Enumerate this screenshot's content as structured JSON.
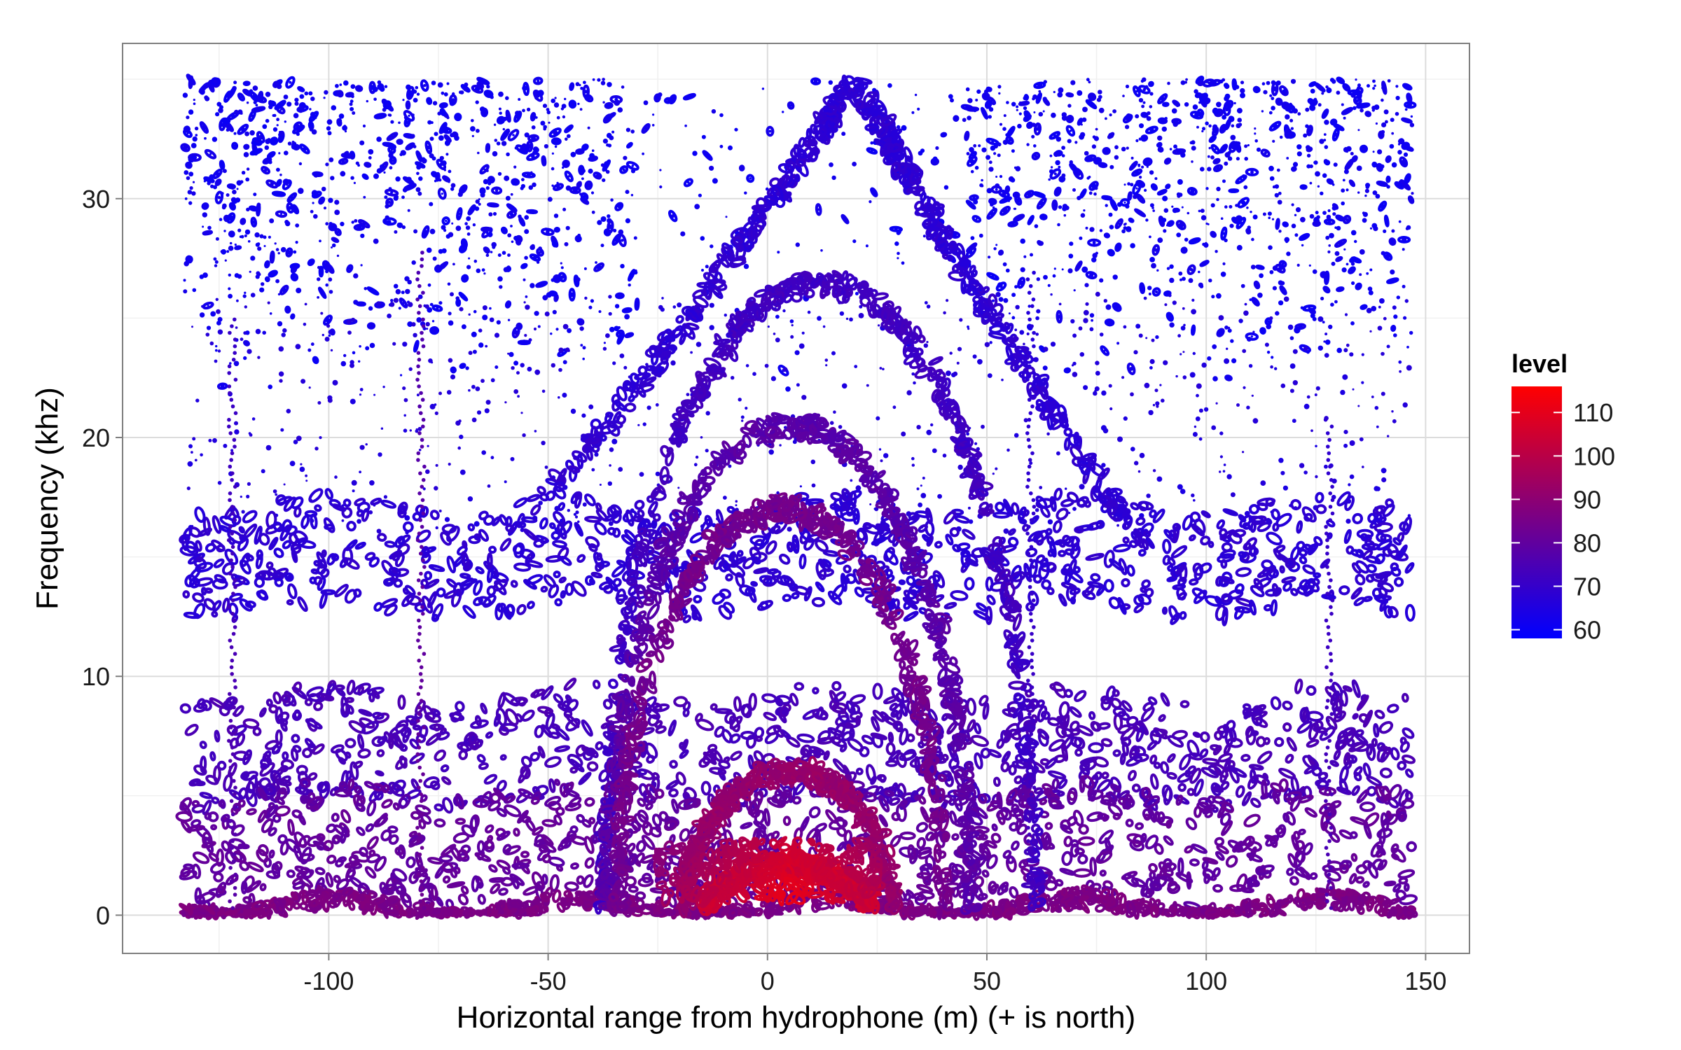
{
  "chart_data": {
    "type": "scatter",
    "description_kind": "contour",
    "xlabel": "Horizontal range from hydrophone (m)  (+ is north)",
    "ylabel": "Frequency (khz)",
    "xlim": [
      -147,
      160
    ],
    "ylim": [
      -1.6,
      36.5
    ],
    "x_ticks": [
      -100,
      -50,
      0,
      50,
      100,
      150
    ],
    "x_tick_labels": [
      "-100",
      "-50",
      "0",
      "50",
      "100",
      "150"
    ],
    "y_ticks": [
      0,
      10,
      20,
      30
    ],
    "y_tick_labels": [
      "0",
      "10",
      "20",
      "30"
    ],
    "data_x_range": [
      -133,
      147
    ],
    "data_y_range": [
      0,
      35
    ],
    "grid": true,
    "legend": {
      "title": "level",
      "position": "right",
      "min": 58,
      "max": 116,
      "low_color": "#0000ff",
      "high_color": "#ff0000",
      "breaks": [
        60,
        70,
        80,
        90,
        100,
        110
      ],
      "break_labels": [
        "60",
        "70",
        "80",
        "90",
        "100",
        "110"
      ]
    },
    "features": [
      {
        "kind": "upper_noise",
        "level": 60
      },
      {
        "kind": "contour_ring",
        "level": 68,
        "apex_x": 20,
        "apex_y": 35,
        "wing_y": 15
      },
      {
        "kind": "contour_ring",
        "level": 72,
        "center_x": 12,
        "top_y": 26.5
      },
      {
        "kind": "contour_ring",
        "level": 78,
        "center_x": 5,
        "top_y": 20.5
      },
      {
        "kind": "contour_ring",
        "level": 84,
        "center_x": 3,
        "top_y": 17
      },
      {
        "kind": "contour_ring",
        "level": 92,
        "center_x": 5,
        "top_y": 6
      },
      {
        "kind": "contour_ring",
        "level": 105,
        "center_x": 5,
        "top_y": 2
      },
      {
        "kind": "source_peak",
        "level": 112,
        "x": 0,
        "y": 0.6
      },
      {
        "kind": "band",
        "level": 68,
        "y": 15
      },
      {
        "kind": "band",
        "level": 74,
        "y": 7
      },
      {
        "kind": "band",
        "level": 80,
        "y": 3
      },
      {
        "kind": "band",
        "level": 86,
        "y": 0.3
      },
      {
        "kind": "vertical_streak",
        "x": -122,
        "level": 70
      },
      {
        "kind": "vertical_streak",
        "x": -79,
        "level": 75
      },
      {
        "kind": "vertical_streak",
        "x": 60,
        "level": 66
      },
      {
        "kind": "vertical_streak",
        "x": 128,
        "level": 68
      }
    ]
  }
}
